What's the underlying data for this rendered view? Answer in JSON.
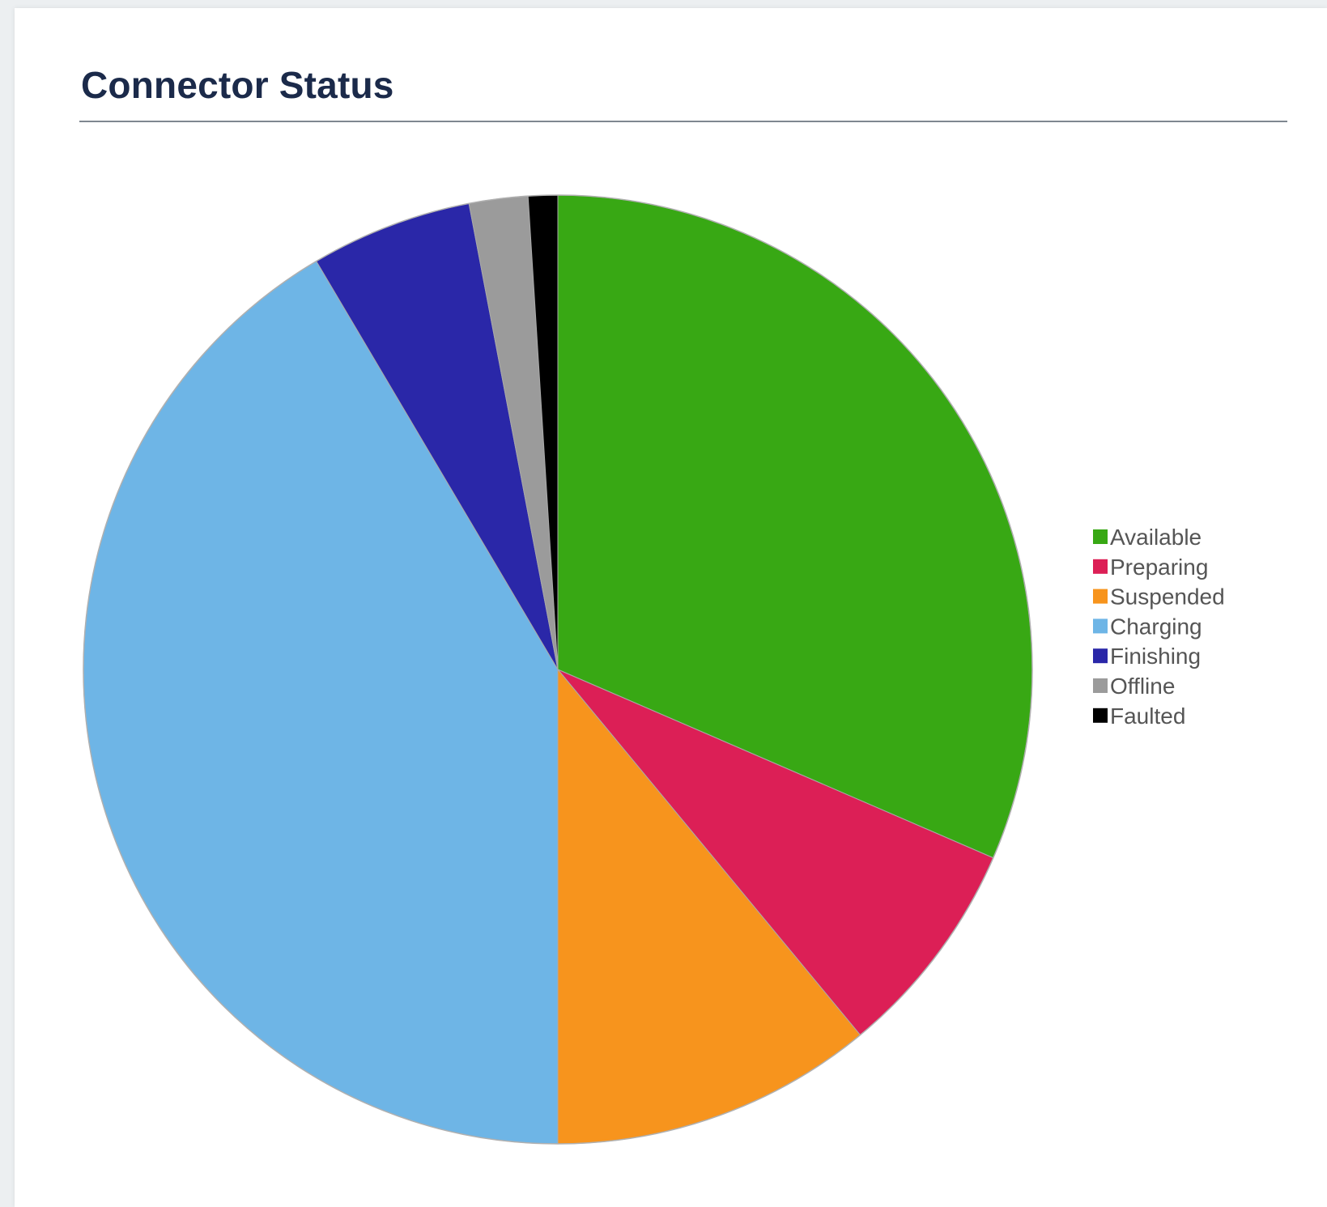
{
  "panel": {
    "title": "Connector Status"
  },
  "chart_data": {
    "type": "pie",
    "title": "",
    "start_angle": "12 o'clock",
    "direction": "clockwise",
    "legend_position": "right",
    "slices": [
      {
        "label": "Available",
        "value": 31.5,
        "color": "#38a814"
      },
      {
        "label": "Preparing",
        "value": 7.5,
        "color": "#dc1f56"
      },
      {
        "label": "Suspended",
        "value": 11.0,
        "color": "#f7941d"
      },
      {
        "label": "Charging",
        "value": 41.5,
        "color": "#6eb5e6"
      },
      {
        "label": "Finishing",
        "value": 5.5,
        "color": "#2a27a8"
      },
      {
        "label": "Offline",
        "value": 2.0,
        "color": "#9b9b9b"
      },
      {
        "label": "Faulted",
        "value": 1.0,
        "color": "#000000"
      }
    ]
  }
}
